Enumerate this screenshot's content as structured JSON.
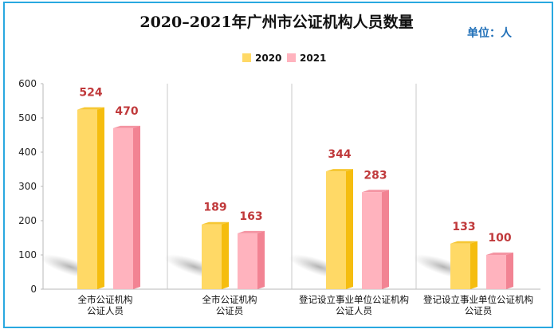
{
  "chart_data": {
    "type": "bar",
    "title": "2020–2021年广州市公证机构人员数量",
    "unit_label": "单位：人",
    "categories": [
      [
        "全市公证机构",
        "公证人员"
      ],
      [
        "全市公证机构",
        "公证员"
      ],
      [
        "登记设立事业单位公证机构",
        "公证人员"
      ],
      [
        "登记设立事业单位公证机构",
        "公证员"
      ]
    ],
    "series": [
      {
        "name": "2020",
        "values": [
          524,
          189,
          344,
          133
        ],
        "color": "#ffd966",
        "side_color": "#f5bd0f"
      },
      {
        "name": "2021",
        "values": [
          470,
          163,
          283,
          100
        ],
        "color": "#ffb3be",
        "side_color": "#f28393"
      }
    ],
    "ylim": [
      0,
      600
    ],
    "yticks": [
      0,
      100,
      200,
      300,
      400,
      500,
      600
    ],
    "grid": false,
    "legend_position": "top-center",
    "value_label_color": "#c0393b"
  }
}
